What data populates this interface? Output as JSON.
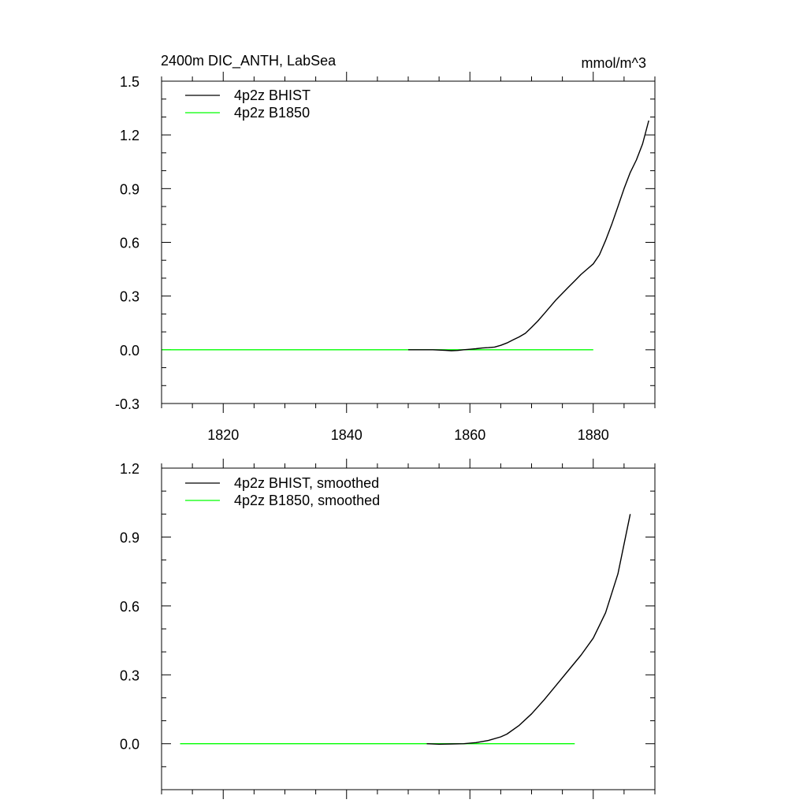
{
  "chart_data": [
    {
      "type": "line",
      "title": "2400m DIC_ANTH, LabSea",
      "units": "mmol/m^3",
      "xlim": [
        1810,
        1890
      ],
      "ylim": [
        -0.3,
        1.5
      ],
      "x_ticks": [
        1820,
        1840,
        1860,
        1880
      ],
      "x_tick_labels": [
        "1820",
        "1840",
        "1860",
        "1880"
      ],
      "y_ticks": [
        -0.3,
        0.0,
        0.3,
        0.6,
        0.9,
        1.2,
        1.5
      ],
      "y_tick_labels": [
        "-0.3",
        "0.0",
        "0.3",
        "0.6",
        "0.9",
        "1.2",
        "1.5"
      ],
      "x_minor_step": 5,
      "y_minor_step": 0.1,
      "legend_position": "top-left",
      "series": [
        {
          "name": "4p2z BHIST",
          "color": "#000000",
          "x": [
            1850,
            1852,
            1854,
            1856,
            1857,
            1858,
            1859,
            1860,
            1861,
            1862,
            1863,
            1864,
            1865,
            1866,
            1867,
            1868,
            1869,
            1870,
            1871,
            1872,
            1873,
            1874,
            1875,
            1876,
            1877,
            1878,
            1879,
            1880,
            1881,
            1882,
            1883,
            1884,
            1885,
            1886,
            1887,
            1888,
            1889
          ],
          "y": [
            0.0,
            0.0,
            0.0,
            -0.003,
            -0.005,
            -0.004,
            0.0,
            0.003,
            0.006,
            0.01,
            0.012,
            0.015,
            0.025,
            0.038,
            0.055,
            0.072,
            0.092,
            0.125,
            0.16,
            0.2,
            0.24,
            0.28,
            0.315,
            0.35,
            0.385,
            0.42,
            0.45,
            0.48,
            0.53,
            0.61,
            0.7,
            0.8,
            0.9,
            0.99,
            1.06,
            1.15,
            1.28
          ]
        },
        {
          "name": "4p2z B1850",
          "color": "#00ff00",
          "x": [
            1810,
            1880
          ],
          "y": [
            0.0,
            0.0
          ]
        }
      ]
    },
    {
      "type": "line",
      "xlim": [
        1810,
        1890
      ],
      "ylim": [
        -0.2,
        1.2
      ],
      "x_ticks": [
        1820,
        1840,
        1860,
        1880
      ],
      "x_tick_labels": [],
      "y_ticks": [
        0.0,
        0.3,
        0.6,
        0.9,
        1.2
      ],
      "y_tick_labels": [
        "0.0",
        "0.3",
        "0.6",
        "0.9",
        "1.2"
      ],
      "x_minor_step": 5,
      "y_minor_step": 0.1,
      "legend_position": "top-left",
      "series": [
        {
          "name": "4p2z BHIST, smoothed",
          "color": "#000000",
          "x": [
            1853,
            1855,
            1857,
            1859,
            1861,
            1863,
            1865,
            1866,
            1868,
            1870,
            1872,
            1874,
            1876,
            1878,
            1880,
            1882,
            1884,
            1886
          ],
          "y": [
            0.0,
            -0.002,
            -0.001,
            0.0,
            0.005,
            0.014,
            0.03,
            0.042,
            0.08,
            0.13,
            0.19,
            0.255,
            0.32,
            0.385,
            0.46,
            0.57,
            0.74,
            1.0
          ]
        },
        {
          "name": "4p2z B1850, smoothed",
          "color": "#00ff00",
          "x": [
            1813,
            1877
          ],
          "y": [
            0.0,
            0.0
          ]
        }
      ]
    }
  ]
}
